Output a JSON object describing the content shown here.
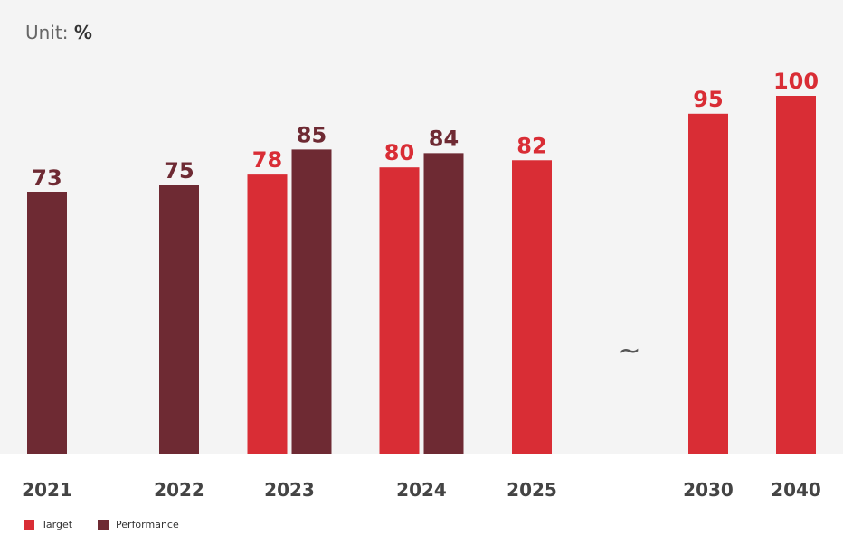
{
  "unit": {
    "prefix": "Unit:",
    "value": "%"
  },
  "colors": {
    "target": "#d92d35",
    "performance": "#6e2a33",
    "category_text": "#444444",
    "plot_bg": "#f4f4f4"
  },
  "gap_symbol": "~",
  "chart_data": {
    "type": "bar",
    "categories": [
      "2021",
      "2022",
      "2023",
      "2024",
      "2025",
      "2030",
      "2040"
    ],
    "series": [
      {
        "name": "Target",
        "values": [
          null,
          null,
          78,
          80,
          82,
          95,
          100
        ]
      },
      {
        "name": "Performance",
        "values": [
          73,
          75,
          85,
          84,
          null,
          null,
          null
        ]
      }
    ],
    "ylim": [
      0,
      110
    ],
    "grid": false,
    "legend_position": "bottom-left"
  },
  "legend": [
    {
      "label": "Target",
      "color": "#d92d35"
    },
    {
      "label": "Performance",
      "color": "#6e2a33"
    }
  ]
}
